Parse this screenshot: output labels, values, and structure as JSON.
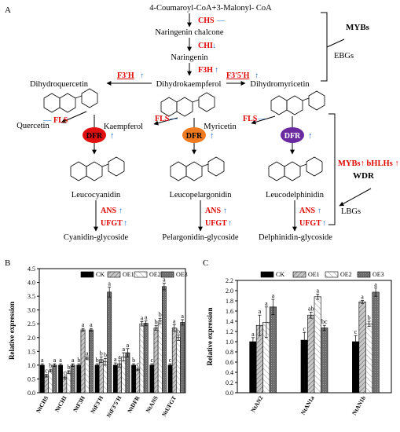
{
  "panel_a": {
    "label": "A",
    "start": "4-Coumaroyl-CoA+3-Malonyl- CoA",
    "chs": "CHS",
    "chs_mark": "—",
    "naringenin_chalcone": "Naringenin chalcone",
    "chi": "CHI",
    "chi_mark": "↓",
    "naringenin": "Naringenin",
    "f3h": "F3H",
    "up": "↑",
    "dash": "—",
    "dihydroquercetin": "Dihydroquercetin",
    "dihydrokaempferol": "Dihydrokaempferol",
    "dihydromyricetin": "Dihydromyricetin",
    "f3ph": "F3'H",
    "f35h": "F3'5'H",
    "fls": "FLS",
    "quercetin": "Quercetin",
    "kaempferol": "Kaempferol",
    "myricetin": "Myricetin",
    "dfr": "DFR",
    "leucocyanidin": "Leucocyanidin",
    "leucopelargonidin": "Leucopelargonidin",
    "leucodelphinidin": "Leucodelphinidin",
    "ans": "ANS",
    "ufgt": "UFGT",
    "cyanidin": "Cyanidin-glycoside",
    "pelargonidin": "Pelargonidin-glycoside",
    "delphinidin": "Delphinidin-glycoside",
    "mybs": "MYBs",
    "ebgs": "EBGs",
    "mybs_bhlhs": "MYBs↑ bHLHs ↑",
    "wdr": "WDR",
    "lbgs": "LBGs",
    "colors": {
      "red": "#e00000",
      "blue": "#1e6fd0",
      "dfr1": "#e01010",
      "dfr2": "#f07a20",
      "dfr3": "#6a2aa0"
    }
  },
  "chart_data": [
    {
      "panel": "B",
      "type": "bar",
      "ylabel": "Relative expression",
      "ylim": [
        0,
        4.5
      ],
      "yticks": [
        "0.0",
        "0.5",
        "1.0",
        "1.5",
        "2.0",
        "2.5",
        "3.0",
        "3.5",
        "4.0",
        "4.5"
      ],
      "categories": [
        "NtCHS",
        "NtCHI",
        "NtF3H",
        "NtF3'H",
        "NtF3'5'H",
        "NtDFR",
        "NtANS",
        "NtUFGT"
      ],
      "legend": [
        "CK",
        "OE1",
        "OE2",
        "OE3"
      ],
      "series": [
        {
          "name": "CK",
          "values": [
            1.0,
            1.0,
            1.0,
            1.0,
            1.0,
            1.0,
            1.0,
            1.0
          ],
          "err": [
            0.05,
            0.05,
            0.05,
            0.05,
            0.08,
            0.05,
            0.05,
            0.05
          ],
          "letters": [
            "a",
            "a",
            "b",
            "b",
            "a",
            "b",
            "c",
            "c"
          ]
        },
        {
          "name": "OE1",
          "values": [
            0.62,
            0.55,
            2.28,
            1.2,
            1.05,
            0.85,
            2.35,
            2.35
          ],
          "err": [
            0.05,
            0.05,
            0.05,
            0.1,
            0.12,
            0.05,
            0.08,
            0.12
          ],
          "letters": [
            "c",
            "c",
            "a",
            "b",
            "a",
            "c",
            "b",
            "a"
          ]
        },
        {
          "name": "OE2",
          "values": [
            0.8,
            0.75,
            1.25,
            1.12,
            1.3,
            2.5,
            2.6,
            2.0
          ],
          "err": [
            0.05,
            0.05,
            0.05,
            0.12,
            0.15,
            0.08,
            0.1,
            0.1
          ],
          "letters": [
            "b",
            "b",
            "a",
            "b",
            "a",
            "a",
            "b",
            "b"
          ]
        },
        {
          "name": "OE3",
          "values": [
            1.0,
            1.0,
            2.28,
            3.65,
            1.45,
            2.52,
            3.85,
            2.55
          ],
          "err": [
            0.05,
            0.05,
            0.05,
            0.18,
            0.15,
            0.08,
            0.12,
            0.1
          ],
          "letters": [
            "a",
            "a",
            "a",
            "a",
            "a",
            "a",
            "a",
            "a"
          ]
        }
      ]
    },
    {
      "panel": "C",
      "type": "bar",
      "ylabel": "Relative expression",
      "ylim": [
        0,
        2.2
      ],
      "yticks": [
        "0.0",
        "0.2",
        "0.4",
        "0.6",
        "0.8",
        "1.0",
        "1.2",
        "1.4",
        "1.6",
        "1.8",
        "2.0",
        "2.2"
      ],
      "categories": [
        "NtAN2",
        "NtAN1a",
        "NtAN1b"
      ],
      "legend": [
        "CK",
        "OE1",
        "OE2",
        "OE3"
      ],
      "series": [
        {
          "name": "CK",
          "values": [
            1.0,
            1.03,
            1.0
          ],
          "err": [
            0.08,
            0.15,
            0.12
          ],
          "letters": [
            "a",
            "c",
            "c"
          ]
        },
        {
          "name": "OE1",
          "values": [
            1.32,
            1.52,
            1.78
          ],
          "err": [
            0.2,
            0.06,
            0.03
          ],
          "letters": [
            "a",
            "ab",
            "a"
          ]
        },
        {
          "name": "OE2",
          "values": [
            1.38,
            1.88,
            1.35
          ],
          "err": [
            0.3,
            0.05,
            0.05
          ],
          "letters": [
            "a",
            "a",
            "b"
          ]
        },
        {
          "name": "OE3",
          "values": [
            1.68,
            1.27,
            1.97
          ],
          "err": [
            0.15,
            0.05,
            0.08
          ],
          "letters": [
            "a",
            "bc",
            "a"
          ]
        }
      ]
    }
  ]
}
